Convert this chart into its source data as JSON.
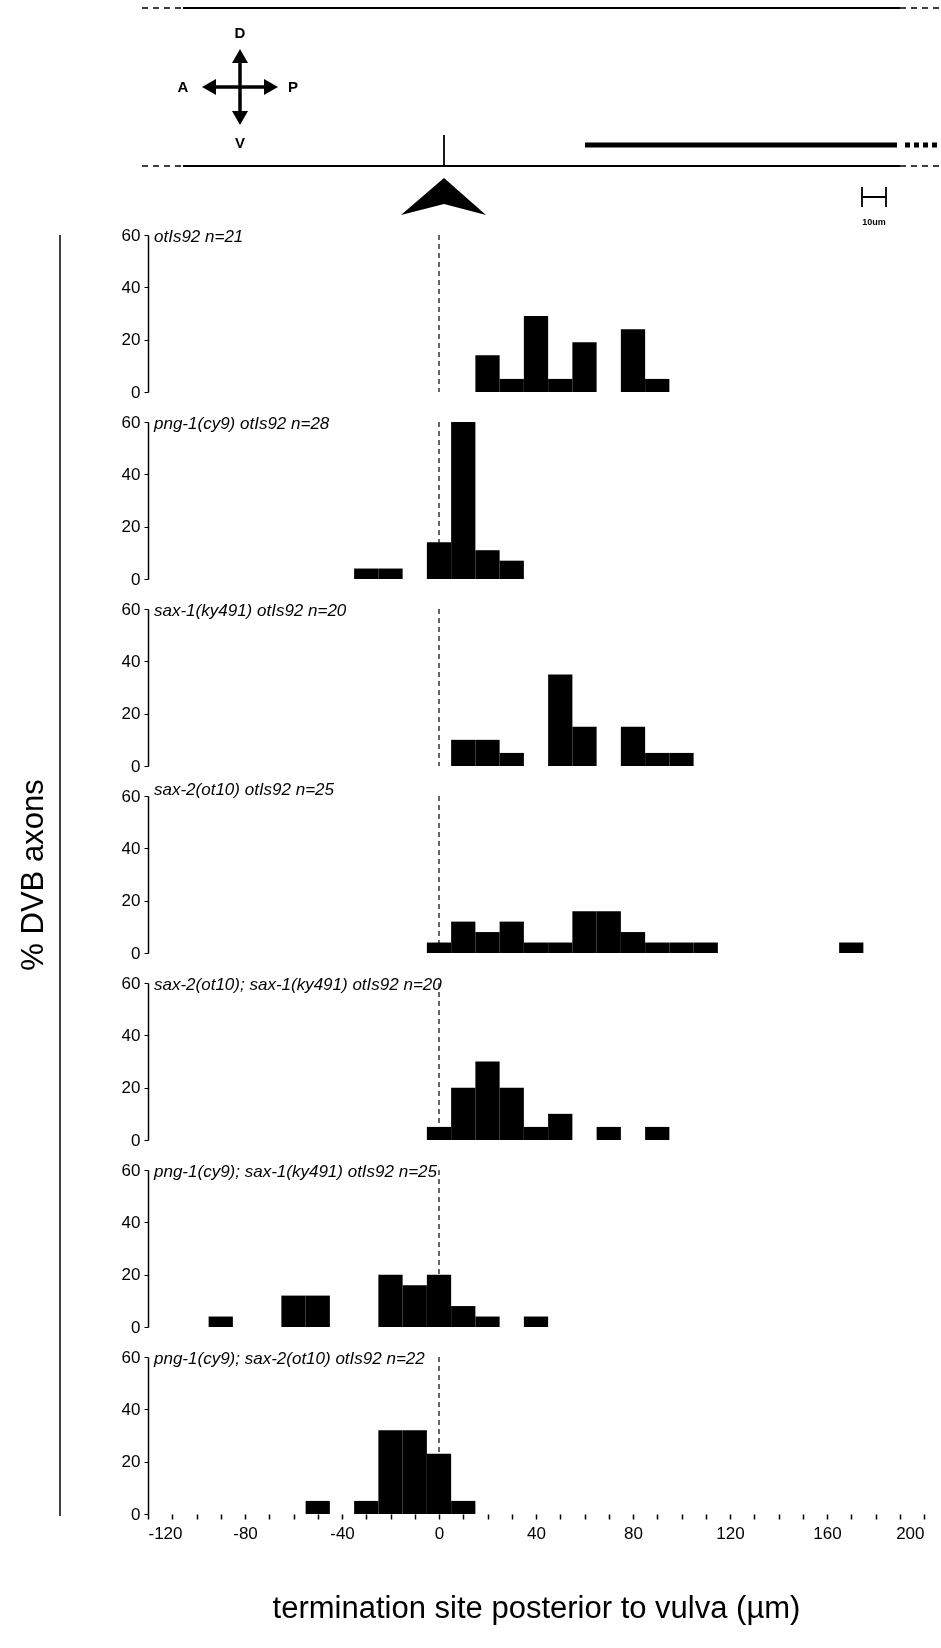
{
  "chart_data": [
    {
      "type": "other",
      "annotations": [
        "D",
        "A",
        "P",
        "V",
        "10um"
      ]
    },
    {
      "type": "histogram",
      "title": "otIs92 n=21",
      "color": "#000000",
      "bins": [
        15,
        25,
        35,
        45,
        55,
        65,
        75,
        85,
        95
      ],
      "values": [
        14,
        5,
        29,
        5,
        19,
        0,
        24,
        5
      ],
      "xlim": [
        -120,
        200
      ],
      "ylim": [
        0,
        60
      ],
      "yticks": [
        0,
        20,
        40,
        60
      ],
      "tick_labels": "y",
      "ref_lines": [
        {
          "axis": "x",
          "value": 0,
          "line_style": "dashed"
        }
      ]
    },
    {
      "type": "histogram",
      "title": "png-1(cy9) otIs92 n=28",
      "color": "#000000",
      "bins": [
        -35,
        -25,
        -15,
        -5,
        5,
        15,
        25,
        35
      ],
      "values": [
        4,
        4,
        0,
        14,
        60,
        11,
        7
      ],
      "xlim": [
        -120,
        200
      ],
      "ylim": [
        0,
        60
      ],
      "yticks": [
        0,
        20,
        40,
        60
      ],
      "tick_labels": "y",
      "ref_lines": [
        {
          "axis": "x",
          "value": 0,
          "line_style": "dashed"
        }
      ]
    },
    {
      "type": "histogram",
      "title": "sax-1(ky491) otIs92 n=20",
      "color": "#000000",
      "bins": [
        5,
        15,
        25,
        35,
        45,
        55,
        65,
        75,
        85,
        95,
        105
      ],
      "values": [
        10,
        10,
        5,
        0,
        35,
        15,
        0,
        15,
        5,
        5
      ],
      "xlim": [
        -120,
        200
      ],
      "ylim": [
        0,
        60
      ],
      "yticks": [
        0,
        20,
        40,
        60
      ],
      "tick_labels": "y",
      "ref_lines": [
        {
          "axis": "x",
          "value": 0,
          "line_style": "dashed"
        }
      ]
    },
    {
      "type": "histogram",
      "title": "sax-2(ot10) otIs92 n=25",
      "ylabel": "% DVB axons",
      "color": "#000000",
      "bins": [
        -5,
        5,
        15,
        25,
        35,
        45,
        55,
        65,
        75,
        85,
        95,
        105,
        115,
        125,
        135,
        145,
        155,
        165,
        175
      ],
      "values": [
        4,
        12,
        8,
        12,
        4,
        4,
        16,
        16,
        8,
        4,
        4,
        4,
        0,
        0,
        0,
        0,
        0,
        4
      ],
      "xlim": [
        -120,
        200
      ],
      "ylim": [
        0,
        60
      ],
      "yticks": [
        0,
        20,
        40,
        60
      ],
      "tick_labels": "y",
      "ref_lines": [
        {
          "axis": "x",
          "value": 0,
          "line_style": "dashed"
        }
      ]
    },
    {
      "type": "histogram",
      "title": "sax-2(ot10); sax-1(ky491) otIs92 n=20",
      "color": "#000000",
      "bins": [
        -5,
        5,
        15,
        25,
        35,
        45,
        55,
        65,
        75,
        85,
        95
      ],
      "values": [
        5,
        20,
        30,
        20,
        5,
        10,
        0,
        5,
        0,
        5
      ],
      "xlim": [
        -120,
        200
      ],
      "ylim": [
        0,
        60
      ],
      "yticks": [
        0,
        20,
        40,
        60
      ],
      "tick_labels": "y",
      "ref_lines": [
        {
          "axis": "x",
          "value": 0,
          "line_style": "dashed"
        }
      ]
    },
    {
      "type": "histogram",
      "title": "png-1(cy9); sax-1(ky491) otIs92 n=25",
      "color": "#000000",
      "bins": [
        -95,
        -85,
        -75,
        -65,
        -55,
        -45,
        -35,
        -25,
        -15,
        -5,
        5,
        15,
        25,
        35,
        45
      ],
      "values": [
        4,
        0,
        0,
        12,
        12,
        0,
        0,
        20,
        16,
        20,
        8,
        4,
        0,
        4
      ],
      "xlim": [
        -120,
        200
      ],
      "ylim": [
        0,
        60
      ],
      "yticks": [
        0,
        20,
        40,
        60
      ],
      "tick_labels": "y",
      "ref_lines": [
        {
          "axis": "x",
          "value": 0,
          "line_style": "dashed"
        }
      ]
    },
    {
      "type": "histogram",
      "title": "png-1(cy9); sax-2(ot10) otIs92 n=22",
      "xlabel": "termination site posterior to vulva (µm)",
      "color": "#000000",
      "bins": [
        -55,
        -45,
        -35,
        -25,
        -15,
        -5,
        5,
        15
      ],
      "values": [
        5,
        0,
        5,
        32,
        32,
        23,
        5
      ],
      "xlim": [
        -120,
        200
      ],
      "ylim": [
        0,
        60
      ],
      "yticks": [
        0,
        20,
        40,
        60
      ],
      "xticks": [
        -120,
        {
          "value": -110,
          "label": null
        },
        {
          "value": -100,
          "label": null
        },
        {
          "value": -90,
          "label": null
        },
        -80,
        {
          "value": -70,
          "label": null
        },
        {
          "value": -60,
          "label": null
        },
        {
          "value": -50,
          "label": null
        },
        -40,
        {
          "value": -30,
          "label": null
        },
        {
          "value": -20,
          "label": null
        },
        {
          "value": -10,
          "label": null
        },
        0,
        {
          "value": 10,
          "label": null
        },
        {
          "value": 20,
          "label": null
        },
        {
          "value": 30,
          "label": null
        },
        40,
        {
          "value": 50,
          "label": null
        },
        {
          "value": 60,
          "label": null
        },
        {
          "value": 70,
          "label": null
        },
        80,
        {
          "value": 90,
          "label": null
        },
        {
          "value": 100,
          "label": null
        },
        {
          "value": 110,
          "label": null
        },
        120,
        {
          "value": 130,
          "label": null
        },
        {
          "value": 140,
          "label": null
        },
        {
          "value": 150,
          "label": null
        },
        160,
        {
          "value": 170,
          "label": null
        },
        {
          "value": 180,
          "label": null
        },
        {
          "value": 190,
          "label": null
        },
        200
      ],
      "ref_lines": [
        {
          "axis": "x",
          "value": 0,
          "line_style": "dashed"
        }
      ]
    }
  ]
}
